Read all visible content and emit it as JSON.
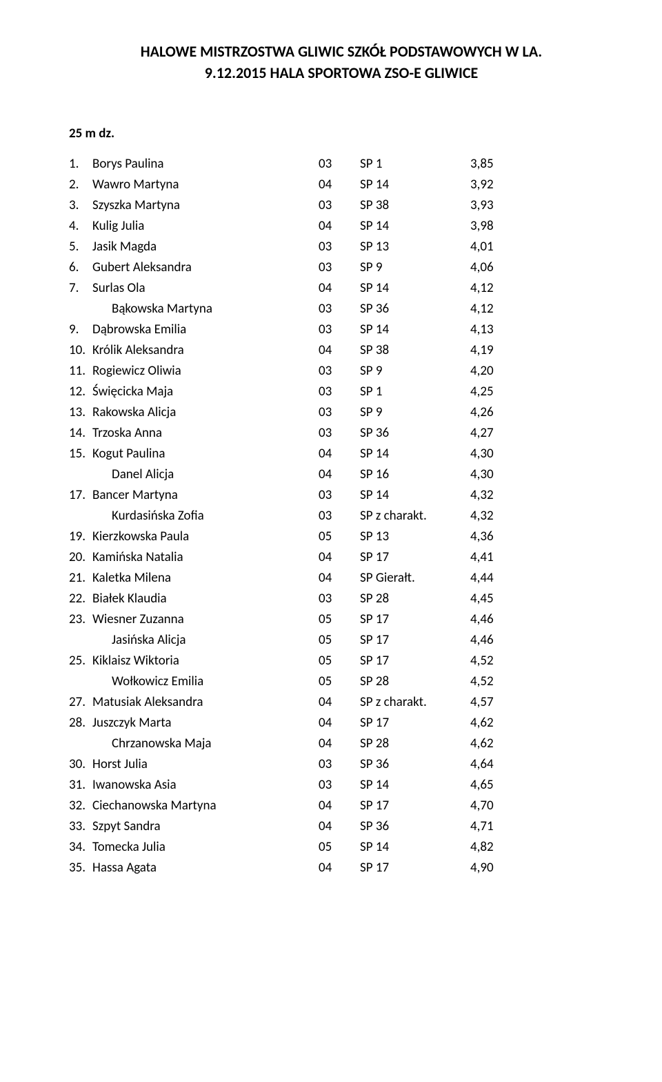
{
  "title_line_1": "HALOWE MISTRZOSTWA GLIWIC SZKÓŁ PODSTAWOWYCH W LA.",
  "title_line_2": "9.12.2015 HALA SPORTOWA ZSO-E GLIWICE",
  "event_name": "25 m dz.",
  "rows": [
    {
      "rank": "1.",
      "name": "Borys Paulina",
      "year": "03",
      "school": "SP 1",
      "result": "3,85"
    },
    {
      "rank": "2.",
      "name": "Wawro Martyna",
      "year": "04",
      "school": "SP 14",
      "result": "3,92"
    },
    {
      "rank": "3.",
      "name": "Szyszka Martyna",
      "year": "03",
      "school": "SP 38",
      "result": "3,93"
    },
    {
      "rank": "4.",
      "name": "Kulig Julia",
      "year": "04",
      "school": "SP 14",
      "result": "3,98"
    },
    {
      "rank": "5.",
      "name": "Jasik Magda",
      "year": "03",
      "school": "SP 13",
      "result": "4,01"
    },
    {
      "rank": "6.",
      "name": "Gubert Aleksandra",
      "year": "03",
      "school": "SP 9",
      "result": "4,06"
    },
    {
      "rank": "7.",
      "name": "Surlas Ola",
      "year": "04",
      "school": "SP 14",
      "result": "4,12"
    },
    {
      "rank": "",
      "name": "Bąkowska Martyna",
      "year": "03",
      "school": "SP 36",
      "result": "4,12",
      "indent": true
    },
    {
      "rank": "9.",
      "name": "Dąbrowska Emilia",
      "year": "03",
      "school": "SP 14",
      "result": "4,13"
    },
    {
      "rank": "10.",
      "name": "Królik Aleksandra",
      "year": "04",
      "school": "SP 38",
      "result": "4,19"
    },
    {
      "rank": "11.",
      "name": "Rogiewicz Oliwia",
      "year": "03",
      "school": "SP 9",
      "result": "4,20"
    },
    {
      "rank": "12.",
      "name": "Święcicka Maja",
      "year": "03",
      "school": "SP 1",
      "result": "4,25"
    },
    {
      "rank": "13.",
      "name": "Rakowska Alicja",
      "year": "03",
      "school": "SP 9",
      "result": "4,26"
    },
    {
      "rank": "14.",
      "name": "Trzoska Anna",
      "year": "03",
      "school": "SP 36",
      "result": "4,27"
    },
    {
      "rank": "15.",
      "name": "Kogut Paulina",
      "year": "04",
      "school": "SP 14",
      "result": "4,30"
    },
    {
      "rank": "",
      "name": "Danel Alicja",
      "year": "04",
      "school": "SP 16",
      "result": "4,30",
      "indent": true
    },
    {
      "rank": "17.",
      "name": "Bancer Martyna",
      "year": "03",
      "school": "SP 14",
      "result": "4,32"
    },
    {
      "rank": "",
      "name": "Kurdasińska Zofia",
      "year": "03",
      "school": "SP z charakt.",
      "result": "4,32",
      "indent": true
    },
    {
      "rank": "19.",
      "name": "Kierzkowska Paula",
      "year": "05",
      "school": "SP 13",
      "result": "4,36"
    },
    {
      "rank": "20.",
      "name": "Kamińska Natalia",
      "year": "04",
      "school": "SP 17",
      "result": "4,41"
    },
    {
      "rank": "21.",
      "name": "Kaletka Milena",
      "year": "04",
      "school": "SP Gierałt.",
      "result": "4,44"
    },
    {
      "rank": "22.",
      "name": "Białek Klaudia",
      "year": "03",
      "school": "SP 28",
      "result": "4,45"
    },
    {
      "rank": "23.",
      "name": "Wiesner Zuzanna",
      "year": "05",
      "school": "SP 17",
      "result": "4,46"
    },
    {
      "rank": "",
      "name": "Jasińska Alicja",
      "year": "05",
      "school": "SP 17",
      "result": "4,46",
      "indent": true
    },
    {
      "rank": "25.",
      "name": "Kiklaisz Wiktoria",
      "year": "05",
      "school": "SP 17",
      "result": "4,52"
    },
    {
      "rank": "",
      "name": "Wołkowicz Emilia",
      "year": "05",
      "school": "SP 28",
      "result": "4,52",
      "indent": true
    },
    {
      "rank": "27.",
      "name": "Matusiak Aleksandra",
      "year": "04",
      "school": "SP z charakt.",
      "result": "4,57"
    },
    {
      "rank": "28.",
      "name": "Juszczyk Marta",
      "year": "04",
      "school": "SP 17",
      "result": "4,62"
    },
    {
      "rank": "",
      "name": "Chrzanowska Maja",
      "year": "04",
      "school": "SP 28",
      "result": "4,62",
      "indent": true
    },
    {
      "rank": "30.",
      "name": "Horst Julia",
      "year": "03",
      "school": "SP 36",
      "result": "4,64"
    },
    {
      "rank": "31.",
      "name": "Iwanowska Asia",
      "year": "03",
      "school": "SP 14",
      "result": "4,65"
    },
    {
      "rank": "32.",
      "name": "Ciechanowska Martyna",
      "year": "04",
      "school": "SP 17",
      "result": "4,70"
    },
    {
      "rank": "33.",
      "name": "Szpyt Sandra",
      "year": "04",
      "school": "SP 36",
      "result": "4,71"
    },
    {
      "rank": "34.",
      "name": "Tomecka Julia",
      "year": "05",
      "school": "SP 14",
      "result": "4,82"
    },
    {
      "rank": "35.",
      "name": "Hassa Agata",
      "year": "04",
      "school": "SP 17",
      "result": "4,90"
    }
  ]
}
